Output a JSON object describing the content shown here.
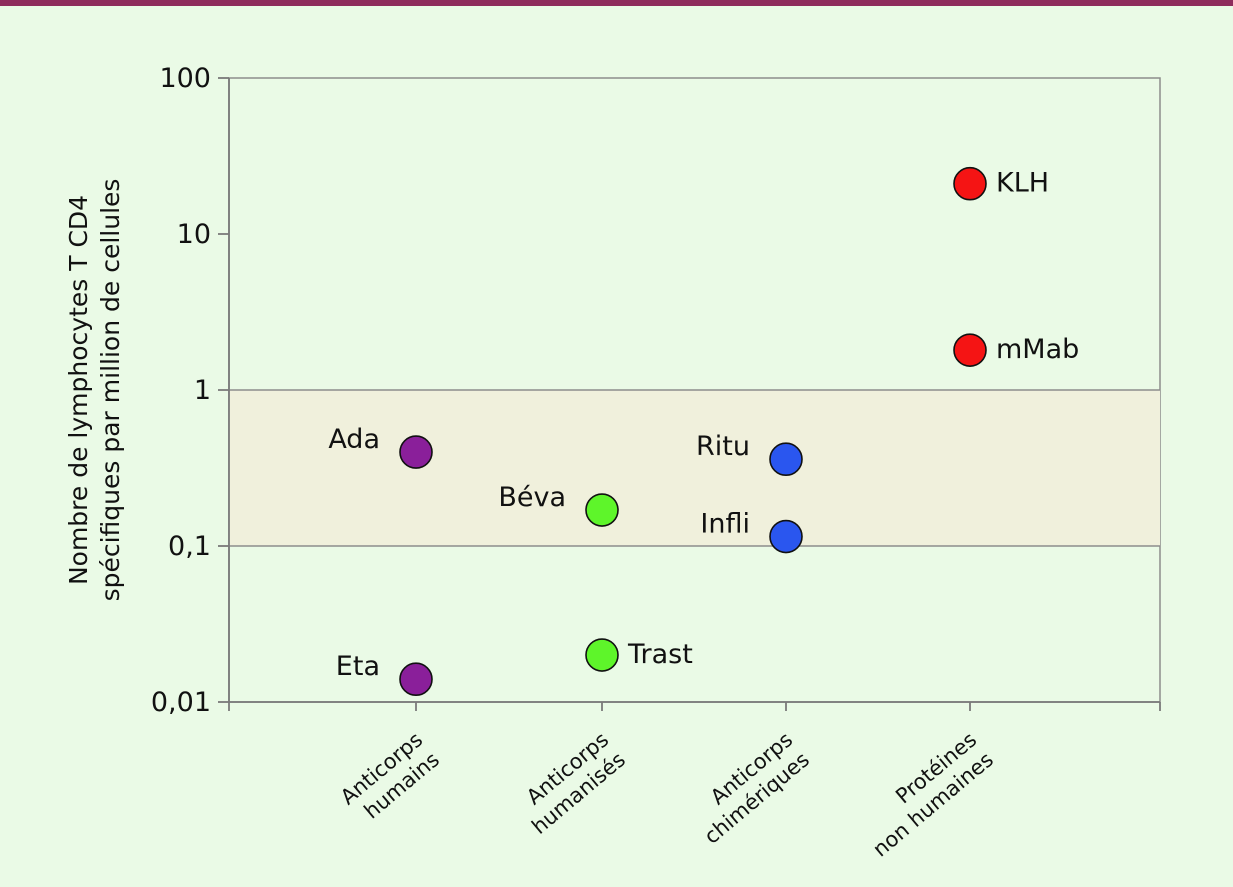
{
  "chart_data": {
    "type": "scatter",
    "title": "",
    "ylabel_lines": [
      "Nombre de lymphocytes T CD4",
      "spécifiques par million de cellules"
    ],
    "yscale": "log",
    "ylim": [
      0.01,
      100
    ],
    "yticks": [
      {
        "value": 100,
        "label": "100"
      },
      {
        "value": 10,
        "label": "10"
      },
      {
        "value": 1,
        "label": "1"
      },
      {
        "value": 0.1,
        "label": "0,1"
      },
      {
        "value": 0.01,
        "label": "0,01"
      }
    ],
    "categories": [
      {
        "lines": [
          "Anticorps",
          "humains"
        ]
      },
      {
        "lines": [
          "Anticorps",
          "humanisés"
        ]
      },
      {
        "lines": [
          "Anticorps",
          "chimériques"
        ]
      },
      {
        "lines": [
          "Protéines",
          "non humaines"
        ]
      }
    ],
    "highlight_band": [
      0.1,
      1
    ],
    "points": [
      {
        "label": "Ada",
        "category": 0,
        "value": 0.4,
        "color": "#8a1f9a",
        "label_side": "left"
      },
      {
        "label": "Eta",
        "category": 0,
        "value": 0.014,
        "color": "#8a1f9a",
        "label_side": "left"
      },
      {
        "label": "Béva",
        "category": 1,
        "value": 0.17,
        "color": "#5ef52a",
        "label_side": "left"
      },
      {
        "label": "Trast",
        "category": 1,
        "value": 0.02,
        "color": "#5ef52a",
        "label_side": "right"
      },
      {
        "label": "Ritu",
        "category": 2,
        "value": 0.36,
        "color": "#2a56ef",
        "label_side": "left"
      },
      {
        "label": "Infli",
        "category": 2,
        "value": 0.115,
        "color": "#2a56ef",
        "label_side": "left"
      },
      {
        "label": "KLH",
        "category": 3,
        "value": 21,
        "color": "#f51414",
        "label_side": "right"
      },
      {
        "label": "mMab",
        "category": 3,
        "value": 1.8,
        "color": "#f51414",
        "label_side": "right"
      }
    ]
  }
}
